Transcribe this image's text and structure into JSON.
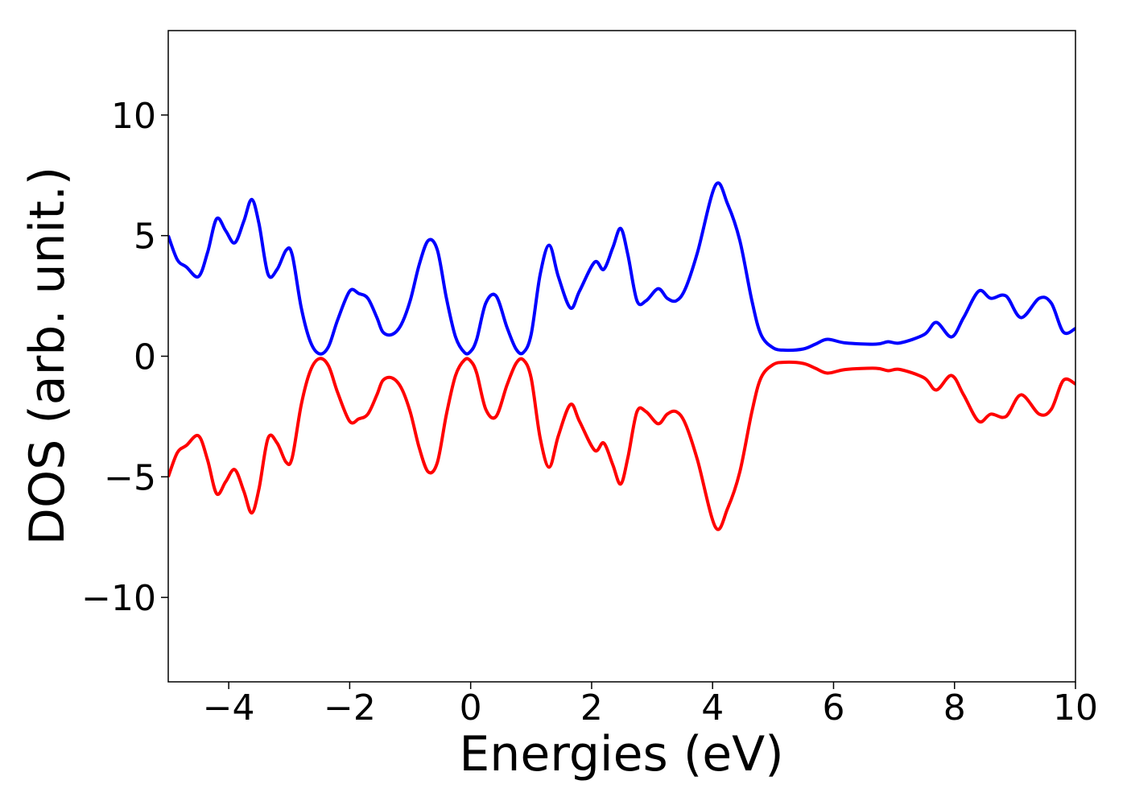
{
  "chart_data": {
    "type": "line",
    "title": "",
    "xlabel": "Energies (eV)",
    "ylabel": "DOS (arb. unit.)",
    "xlim": [
      -5,
      10
    ],
    "ylim": [
      -13.5,
      13.5
    ],
    "xticks": [
      -4,
      -2,
      0,
      2,
      4,
      6,
      8,
      10
    ],
    "yticks": [
      -10,
      -5,
      0,
      5,
      10
    ],
    "xtick_labels": [
      "−4",
      "−2",
      "0",
      "2",
      "4",
      "6",
      "8",
      "10"
    ],
    "ytick_labels": [
      "−10",
      "−5",
      "0",
      "5",
      "10"
    ],
    "grid": false,
    "legend": "none",
    "series": [
      {
        "color": "#0000ff",
        "x": [
          -5.0,
          -4.85,
          -4.7,
          -4.5,
          -4.35,
          -4.2,
          -4.05,
          -3.9,
          -3.75,
          -3.62,
          -3.5,
          -3.35,
          -3.2,
          -3.05,
          -2.95,
          -2.8,
          -2.65,
          -2.5,
          -2.35,
          -2.2,
          -2.0,
          -1.85,
          -1.7,
          -1.55,
          -1.45,
          -1.3,
          -1.15,
          -1.0,
          -0.85,
          -0.7,
          -0.55,
          -0.4,
          -0.25,
          -0.1,
          0.0,
          0.1,
          0.25,
          0.42,
          0.6,
          0.75,
          0.87,
          1.0,
          1.15,
          1.3,
          1.45,
          1.65,
          1.8,
          2.05,
          2.2,
          2.35,
          2.48,
          2.6,
          2.75,
          2.9,
          3.1,
          3.25,
          3.4,
          3.55,
          3.75,
          4.05,
          4.25,
          4.45,
          4.65,
          4.8,
          5.0,
          5.2,
          5.5,
          5.7,
          5.9,
          6.2,
          6.7,
          6.9,
          7.1,
          7.5,
          7.7,
          7.95,
          8.15,
          8.4,
          8.6,
          8.85,
          9.1,
          9.4,
          9.6,
          9.8,
          10.0
        ],
        "values": [
          5.0,
          4.0,
          3.7,
          3.3,
          4.3,
          5.7,
          5.2,
          4.7,
          5.6,
          6.5,
          5.5,
          3.4,
          3.6,
          4.4,
          4.2,
          2.0,
          0.6,
          0.1,
          0.4,
          1.5,
          2.7,
          2.6,
          2.4,
          1.6,
          1.0,
          0.9,
          1.3,
          2.3,
          3.8,
          4.8,
          4.4,
          2.4,
          0.8,
          0.15,
          0.2,
          0.7,
          2.2,
          2.5,
          1.2,
          0.3,
          0.15,
          0.9,
          3.4,
          4.6,
          3.3,
          2.0,
          2.7,
          3.9,
          3.6,
          4.5,
          5.3,
          4.2,
          2.3,
          2.3,
          2.8,
          2.4,
          2.3,
          2.8,
          4.3,
          7.1,
          6.3,
          4.8,
          2.3,
          0.9,
          0.35,
          0.25,
          0.3,
          0.5,
          0.7,
          0.55,
          0.5,
          0.6,
          0.55,
          0.9,
          1.4,
          0.8,
          1.6,
          2.7,
          2.4,
          2.5,
          1.6,
          2.4,
          2.2,
          1.0,
          1.15
        ]
      },
      {
        "color": "#ff0000",
        "x": [
          -5.0,
          -4.85,
          -4.7,
          -4.5,
          -4.35,
          -4.2,
          -4.05,
          -3.9,
          -3.75,
          -3.62,
          -3.5,
          -3.35,
          -3.2,
          -3.05,
          -2.95,
          -2.8,
          -2.65,
          -2.5,
          -2.35,
          -2.2,
          -2.0,
          -1.85,
          -1.7,
          -1.55,
          -1.45,
          -1.3,
          -1.15,
          -1.0,
          -0.85,
          -0.7,
          -0.55,
          -0.4,
          -0.25,
          -0.1,
          0.0,
          0.1,
          0.25,
          0.42,
          0.6,
          0.75,
          0.87,
          1.0,
          1.15,
          1.3,
          1.45,
          1.65,
          1.8,
          2.05,
          2.2,
          2.35,
          2.48,
          2.6,
          2.75,
          2.9,
          3.1,
          3.25,
          3.4,
          3.55,
          3.75,
          4.05,
          4.25,
          4.45,
          4.65,
          4.8,
          5.0,
          5.2,
          5.5,
          5.7,
          5.9,
          6.2,
          6.7,
          6.9,
          7.1,
          7.5,
          7.7,
          7.95,
          8.15,
          8.4,
          8.6,
          8.85,
          9.1,
          9.4,
          9.6,
          9.8,
          10.0
        ],
        "values": [
          -5.0,
          -4.0,
          -3.7,
          -3.3,
          -4.3,
          -5.7,
          -5.2,
          -4.7,
          -5.6,
          -6.5,
          -5.5,
          -3.4,
          -3.6,
          -4.4,
          -4.2,
          -2.0,
          -0.6,
          -0.1,
          -0.4,
          -1.5,
          -2.7,
          -2.6,
          -2.4,
          -1.6,
          -1.0,
          -0.9,
          -1.3,
          -2.3,
          -3.8,
          -4.8,
          -4.4,
          -2.4,
          -0.8,
          -0.15,
          -0.2,
          -0.7,
          -2.2,
          -2.5,
          -1.2,
          -0.3,
          -0.15,
          -0.9,
          -3.4,
          -4.6,
          -3.3,
          -2.0,
          -2.7,
          -3.9,
          -3.6,
          -4.5,
          -5.3,
          -4.2,
          -2.3,
          -2.3,
          -2.8,
          -2.4,
          -2.3,
          -2.8,
          -4.3,
          -7.1,
          -6.3,
          -4.8,
          -2.3,
          -0.9,
          -0.35,
          -0.25,
          -0.3,
          -0.5,
          -0.7,
          -0.55,
          -0.5,
          -0.6,
          -0.55,
          -0.9,
          -1.4,
          -0.8,
          -1.6,
          -2.7,
          -2.4,
          -2.5,
          -1.6,
          -2.4,
          -2.2,
          -1.0,
          -1.15
        ]
      }
    ]
  }
}
